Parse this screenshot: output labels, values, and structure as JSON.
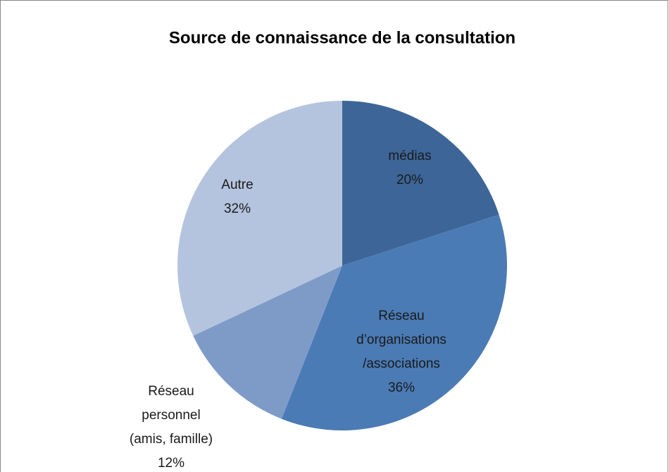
{
  "chart_data": {
    "type": "pie",
    "title": "Source de connaissance de la consultation",
    "categories": [
      "médias",
      "Réseau\nd’organisations\n/associations",
      "Réseau\npersonnel\n(amis, famille)",
      "Autre"
    ],
    "values": [
      20,
      36,
      12,
      32
    ],
    "value_labels": [
      "20%",
      "36%",
      "12%",
      "32%"
    ],
    "colors": [
      "#3d6597",
      "#4a7bb5",
      "#7e9bc8",
      "#b5c4de"
    ]
  }
}
